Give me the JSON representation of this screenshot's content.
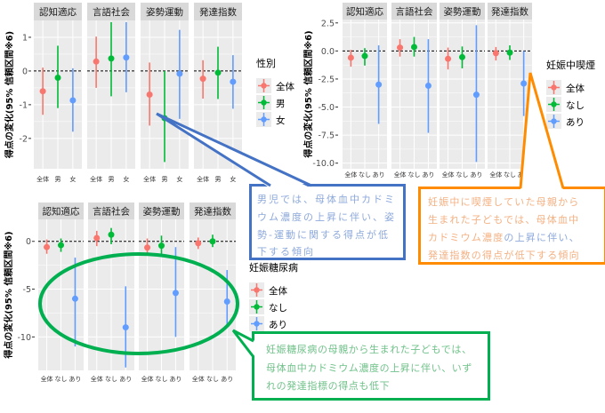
{
  "colors": {
    "group1": "#F8766D",
    "group2": "#00BA38",
    "group3": "#619CFF",
    "panel_bg": "#EBEBEB",
    "strip_bg": "#D9D9D9",
    "blue_callout": "#4472C4",
    "orange_callout": "#FF8C00",
    "green_callout": "#00B050"
  },
  "chart_data": [
    {
      "type": "errorbar",
      "facets": [
        "認知適応",
        "言語社会",
        "姿勢運動",
        "発達指数"
      ],
      "categories": [
        "全体",
        "男",
        "女"
      ],
      "ylabel": "得点の変化(95% 信頼区間※6)",
      "legend_title": "性別",
      "legend_placement": "right",
      "yticks": [
        "1",
        "0",
        "-1",
        "-2"
      ],
      "ytick_values": [
        1,
        0,
        -1,
        -2
      ],
      "ylim": [
        -2.9,
        1.5
      ],
      "reference_line": 0,
      "grid": true,
      "data": [
        [
          {
            "estimate": -0.6,
            "lower": -1.3,
            "upper": 0.1
          },
          {
            "estimate": -0.2,
            "lower": -1.1,
            "upper": 0.75
          },
          {
            "estimate": -0.87,
            "lower": -1.8,
            "upper": 0.08
          }
        ],
        [
          {
            "estimate": 0.28,
            "lower": -0.5,
            "upper": 1.02
          },
          {
            "estimate": 0.37,
            "lower": -0.75,
            "upper": 1.45
          },
          {
            "estimate": 0.4,
            "lower": -0.63,
            "upper": 1.45
          }
        ],
        [
          {
            "estimate": -0.7,
            "lower": -1.62,
            "upper": 0.25
          },
          {
            "estimate": -1.4,
            "lower": -2.7,
            "upper": 0.0
          },
          {
            "estimate": -0.08,
            "lower": -1.42,
            "upper": 1.22
          }
        ],
        [
          {
            "estimate": -0.23,
            "lower": -0.82,
            "upper": 0.32
          },
          {
            "estimate": -0.05,
            "lower": -0.83,
            "upper": 0.72
          },
          {
            "estimate": -0.32,
            "lower": -1.12,
            "upper": 0.47
          }
        ]
      ]
    },
    {
      "type": "errorbar",
      "facets": [
        "認知適応",
        "言語社会",
        "姿勢運動",
        "発達指数"
      ],
      "categories": [
        "全体",
        "なし",
        "あり"
      ],
      "ylabel": "得点の変化(95% 信頼区間※6)",
      "legend_title": "妊娠中喫煙",
      "legend_placement": "right",
      "yticks": [
        "2.5",
        "0.0",
        "-2.5",
        "-5.0",
        "-7.5",
        "-10.0"
      ],
      "ytick_values": [
        2.5,
        0,
        -2.5,
        -5,
        -7.5,
        -10
      ],
      "ylim": [
        -10.5,
        2.8
      ],
      "reference_line": 0,
      "grid": true,
      "data": [
        [
          {
            "estimate": -0.6,
            "lower": -1.4,
            "upper": 0.1
          },
          {
            "estimate": -0.45,
            "lower": -1.3,
            "upper": 0.25
          },
          {
            "estimate": -3.0,
            "lower": -6.5,
            "upper": 0.5
          }
        ],
        [
          {
            "estimate": 0.3,
            "lower": -0.5,
            "upper": 1.05
          },
          {
            "estimate": 0.35,
            "lower": -0.5,
            "upper": 1.25
          },
          {
            "estimate": -3.1,
            "lower": -7.3,
            "upper": 1.05
          }
        ],
        [
          {
            "estimate": -0.7,
            "lower": -1.65,
            "upper": 0.3
          },
          {
            "estimate": -0.55,
            "lower": -1.55,
            "upper": 0.4
          },
          {
            "estimate": -3.9,
            "lower": -9.9,
            "upper": 2.3
          }
        ],
        [
          {
            "estimate": -0.2,
            "lower": -0.85,
            "upper": 0.35
          },
          {
            "estimate": -0.15,
            "lower": -0.8,
            "upper": 0.5
          },
          {
            "estimate": -2.9,
            "lower": -5.8,
            "upper": 0.0
          }
        ]
      ]
    },
    {
      "type": "errorbar",
      "facets": [
        "認知適応",
        "言語社会",
        "姿勢運動",
        "発達指数"
      ],
      "categories": [
        "全体",
        "なし",
        "あり"
      ],
      "ylabel": "得点の変化(95% 信頼区間※6)",
      "legend_title": "妊娠糖尿病",
      "legend_placement": "right",
      "yticks": [
        "0",
        "-5",
        "-10"
      ],
      "ytick_values": [
        0,
        -5,
        -10
      ],
      "ylim": [
        -13.5,
        2.3
      ],
      "reference_line": 0,
      "grid": true,
      "data": [
        [
          {
            "estimate": -0.6,
            "lower": -1.3,
            "upper": 0.2
          },
          {
            "estimate": -0.4,
            "lower": -1.1,
            "upper": 0.3
          },
          {
            "estimate": -6.0,
            "lower": -11.0,
            "upper": -1.7
          }
        ],
        [
          {
            "estimate": 0.35,
            "lower": -0.5,
            "upper": 1.1
          },
          {
            "estimate": 0.7,
            "lower": -0.3,
            "upper": 1.4
          },
          {
            "estimate": -9.0,
            "lower": -13.2,
            "upper": -4.7
          }
        ],
        [
          {
            "estimate": -0.65,
            "lower": -1.5,
            "upper": 0.3
          },
          {
            "estimate": -0.45,
            "lower": -1.4,
            "upper": 0.6
          },
          {
            "estimate": -5.4,
            "lower": -10.0,
            "upper": -0.6
          }
        ],
        [
          {
            "estimate": -0.2,
            "lower": -0.8,
            "upper": 0.4
          },
          {
            "estimate": 0.0,
            "lower": -0.6,
            "upper": 0.7
          },
          {
            "estimate": -6.3,
            "lower": -9.0,
            "upper": -3.0
          }
        ]
      ]
    }
  ],
  "annotations": {
    "sex": {
      "lines": [
        "男児では、母体血中カドミ",
        "ウム濃度の上昇に伴い、姿",
        "勢-運動に関する得点が低",
        "下する傾向"
      ]
    },
    "smoking": {
      "lines": [
        "妊娠中に喫煙していた母親から",
        "生まれた子どもでは、母体血中"
      ],
      "line3a": "カドミウム濃度",
      "line3b": "の上昇に伴い、",
      "line4": "発達指数の得点が低下する傾向"
    },
    "diabetes": {
      "lines": [
        "妊娠糖尿病の母親から生まれた子どもでは、",
        "母体血中カドミウム濃度の上昇に伴い、いず",
        "れの発達指標の得点も低下"
      ]
    }
  }
}
